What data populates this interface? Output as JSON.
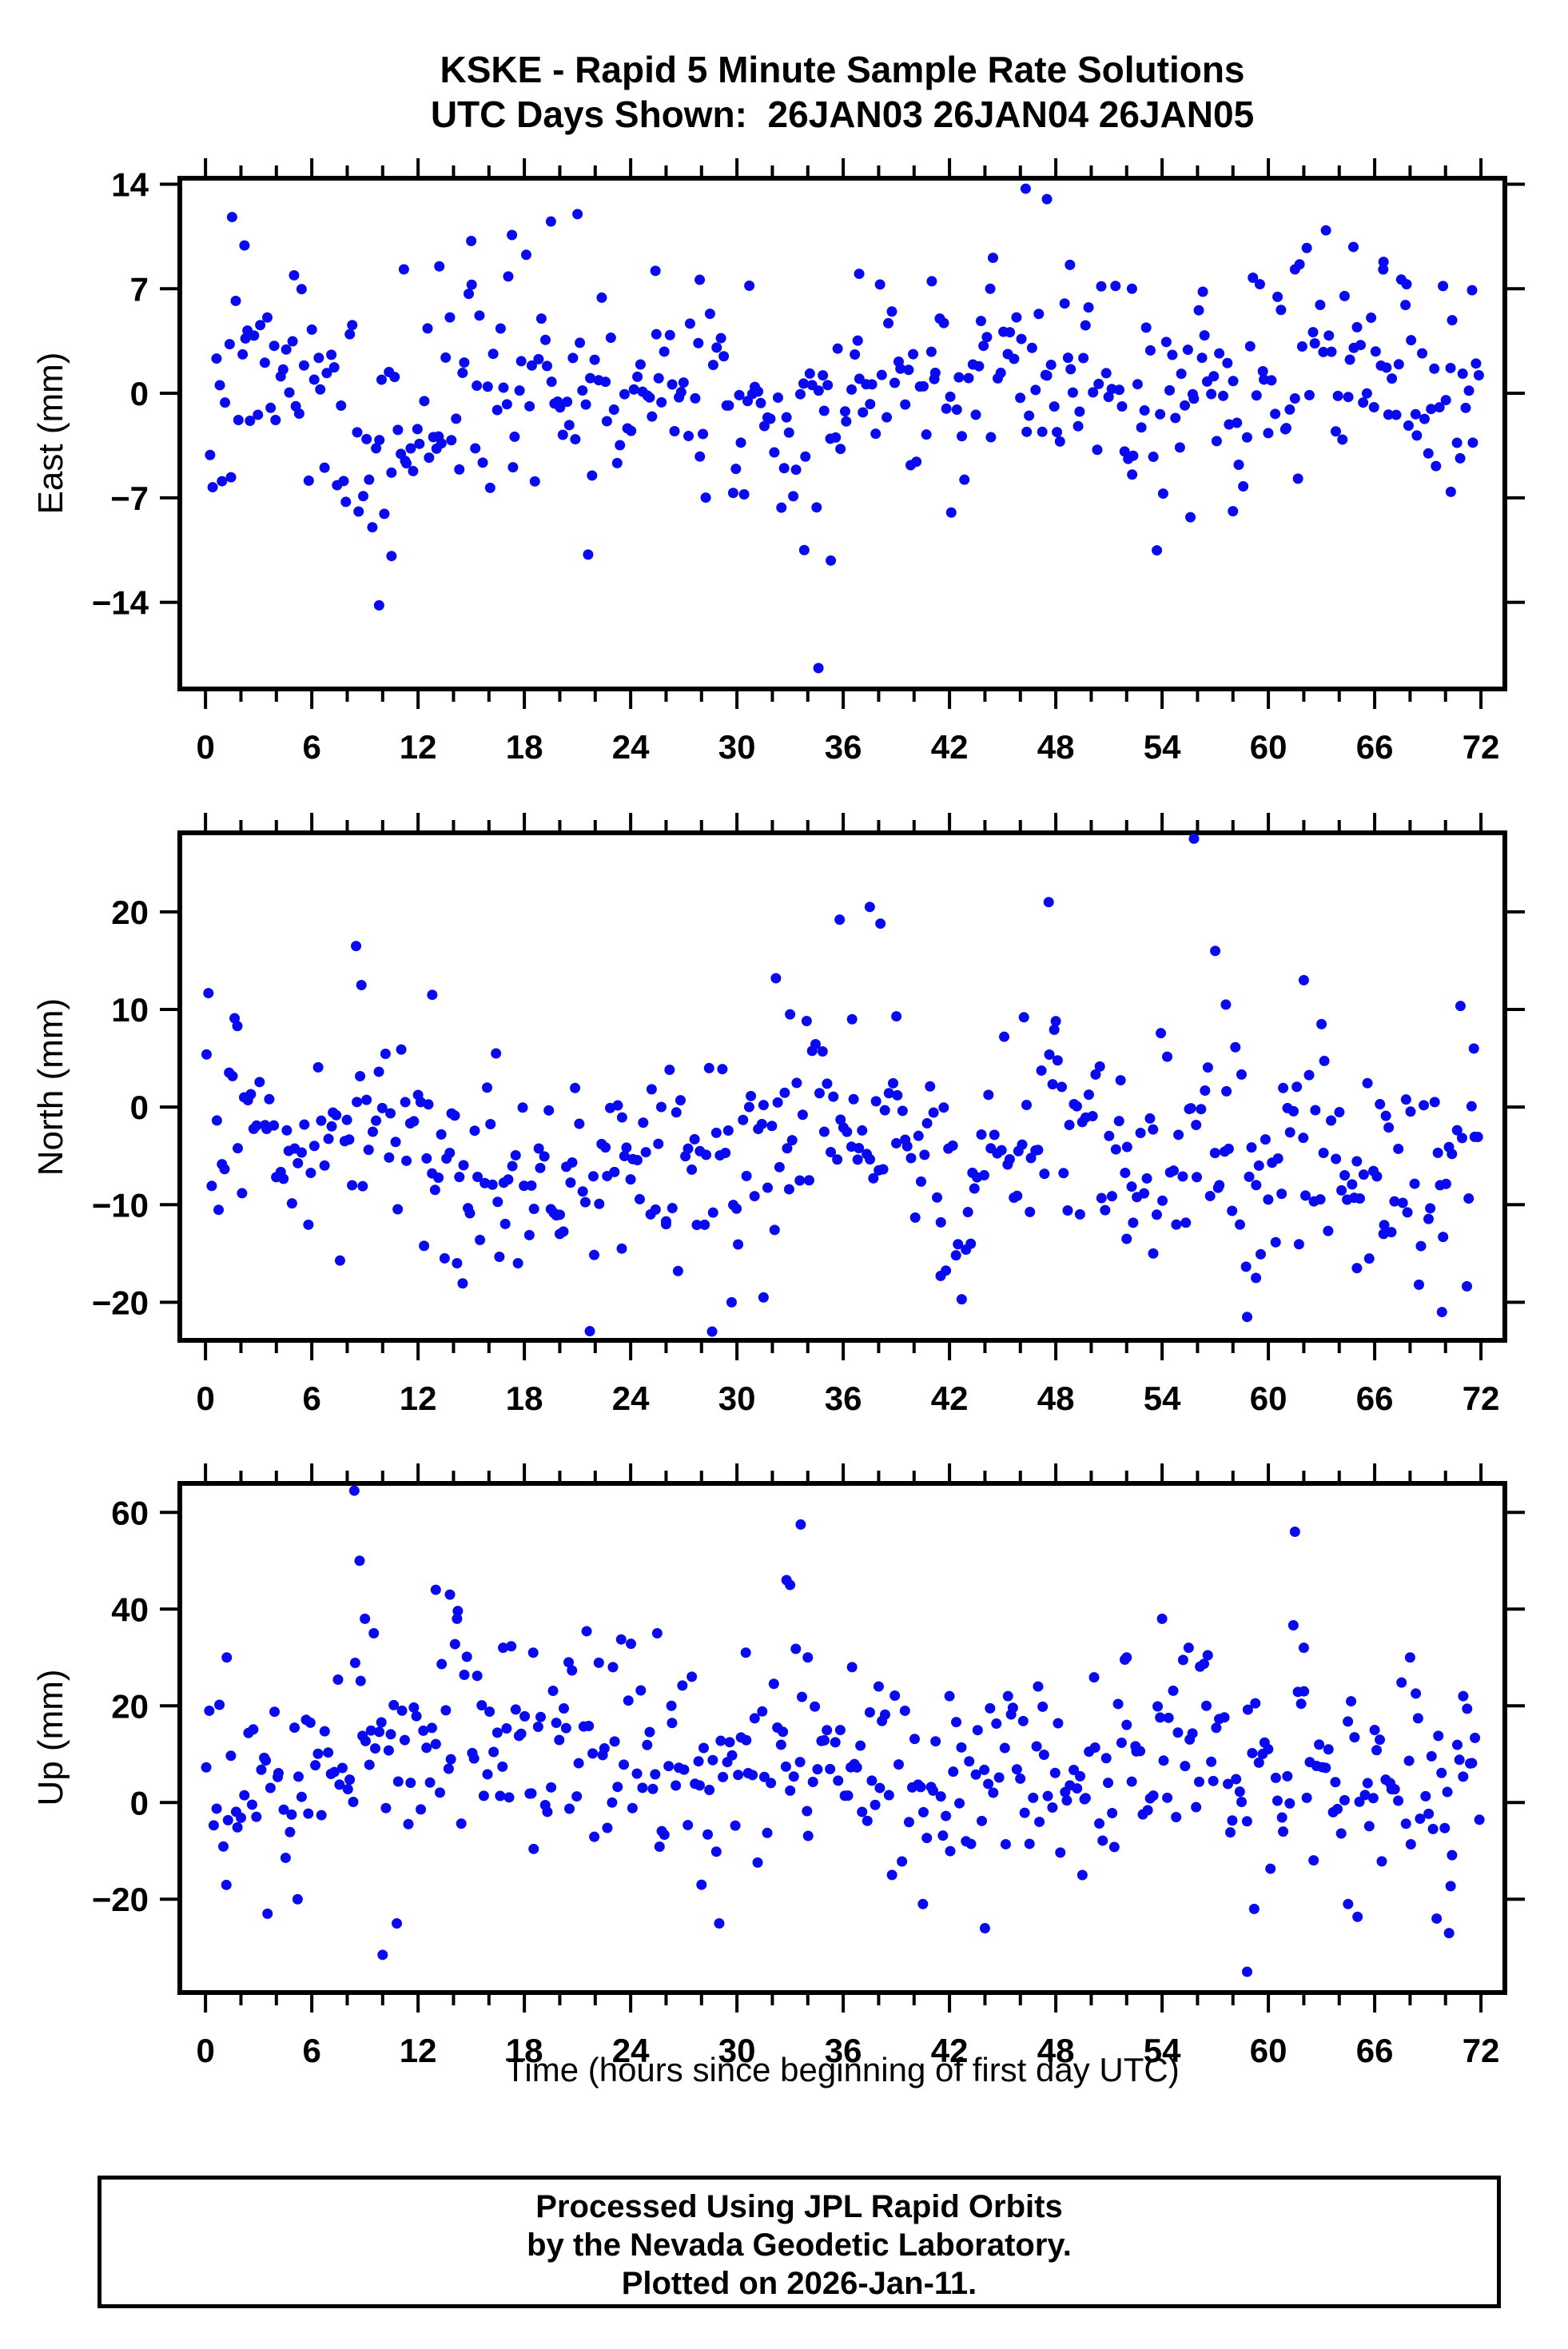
{
  "page": {
    "title_line1": "KSKE - Rapid 5 Minute Sample Rate Solutions",
    "title_line2": "UTC Days Shown:  26JAN03 26JAN04 26JAN05",
    "footer_lines": [
      "Processed Using JPL Rapid Orbits",
      "by the Nevada Geodetic Laboratory.",
      "Plotted on 2026-Jan-11."
    ]
  },
  "chart_data": {
    "type": "scatter",
    "station": "KSKE",
    "marker": {
      "shape": "circle",
      "color": "#0a0af0",
      "radius_px": 6.5
    },
    "x_axis": {
      "label": "Time (hours since beginning of first day UTC)",
      "limits": [
        -1.45,
        73.35
      ],
      "major_ticks": [
        0,
        6,
        12,
        18,
        24,
        30,
        36,
        42,
        48,
        54,
        60,
        66,
        72
      ],
      "minor_tick_interval": 2
    },
    "panels": [
      {
        "id": "east",
        "ylabel": "East (mm)",
        "ylim": [
          -19.8,
          14.4
        ],
        "ytick_values": [
          14,
          7,
          0,
          -7,
          -14
        ],
        "ytick_labels": [
          "14",
          "7",
          "0",
          "−7",
          "−14"
        ],
        "n_background_points": 400,
        "seed": 7,
        "noise_std": 3.4,
        "baseline_knot_interval_hours": 3,
        "baseline_knots": [
          -1,
          0,
          1.5,
          -4,
          -2,
          1,
          0.5,
          0.5,
          0,
          0,
          0.5,
          -3,
          -1,
          1,
          0.5,
          2,
          2,
          0.5,
          0.5,
          -0.5,
          1,
          2.5,
          2,
          1,
          0.5
        ],
        "outlier_points": [
          [
            1.5,
            11.8
          ],
          [
            2.2,
            9.9
          ],
          [
            5.0,
            7.9
          ],
          [
            9.8,
            -14.2
          ],
          [
            10.5,
            -10.9
          ],
          [
            11.2,
            8.3
          ],
          [
            13.2,
            8.5
          ],
          [
            15.0,
            10.2
          ],
          [
            17.3,
            10.6
          ],
          [
            19.5,
            11.5
          ],
          [
            21.0,
            12.0
          ],
          [
            21.6,
            -10.8
          ],
          [
            25.4,
            8.2
          ],
          [
            27.9,
            7.6
          ],
          [
            30.7,
            7.2
          ],
          [
            33.8,
            -10.5
          ],
          [
            34.6,
            -18.4
          ],
          [
            35.3,
            -11.2
          ],
          [
            36.9,
            8.0
          ],
          [
            41.0,
            7.5
          ],
          [
            44.3,
            7.0
          ],
          [
            46.3,
            13.7
          ],
          [
            47.5,
            13.0
          ],
          [
            48.8,
            8.6
          ],
          [
            52.3,
            7.0
          ],
          [
            55.6,
            -8.3
          ],
          [
            56.3,
            6.8
          ],
          [
            58.0,
            -7.9
          ],
          [
            61.5,
            8.3
          ],
          [
            64.8,
            9.8
          ],
          [
            66.5,
            8.8
          ],
          [
            67.8,
            7.3
          ],
          [
            70.3,
            -6.6
          ],
          [
            71.5,
            6.9
          ]
        ]
      },
      {
        "id": "north",
        "ylabel": "North (mm)",
        "ylim": [
          -23.9,
          28.1
        ],
        "ytick_values": [
          20,
          10,
          0,
          -10,
          -20
        ],
        "ytick_labels": [
          "20",
          "10",
          "0",
          "−10",
          "−20"
        ],
        "n_background_points": 400,
        "seed": 13,
        "noise_std": 5.0,
        "baseline_knot_interval_hours": 3,
        "baseline_knots": [
          -1,
          -4,
          -7,
          -3,
          -4,
          -9,
          -6,
          -5,
          -4,
          -5,
          -6,
          -2,
          -1,
          -3,
          -7,
          -4,
          -2,
          -6,
          -4,
          -3,
          -6,
          -4,
          -7,
          -6,
          -2
        ],
        "outlier_points": [
          [
            1.8,
            8.3
          ],
          [
            8.5,
            16.5
          ],
          [
            8.8,
            12.5
          ],
          [
            12.8,
            11.5
          ],
          [
            13.5,
            -15.5
          ],
          [
            14.2,
            -16.0
          ],
          [
            16.4,
            5.5
          ],
          [
            20.0,
            -13.0
          ],
          [
            23.5,
            -14.5
          ],
          [
            26.0,
            -12.0
          ],
          [
            28.6,
            -23.0
          ],
          [
            29.7,
            -20.0
          ],
          [
            31.5,
            -19.5
          ],
          [
            32.2,
            13.2
          ],
          [
            33.0,
            9.5
          ],
          [
            35.8,
            19.2
          ],
          [
            36.5,
            9.0
          ],
          [
            37.5,
            20.5
          ],
          [
            38.1,
            18.8
          ],
          [
            39.0,
            9.3
          ],
          [
            41.5,
            -17.3
          ],
          [
            43.2,
            -14.0
          ],
          [
            46.2,
            9.2
          ],
          [
            47.6,
            21.0
          ],
          [
            48.0,
            8.8
          ],
          [
            52.0,
            -13.5
          ],
          [
            53.5,
            -15.0
          ],
          [
            55.8,
            27.5
          ],
          [
            57.0,
            16.0
          ],
          [
            57.6,
            10.5
          ],
          [
            58.8,
            -21.5
          ],
          [
            59.3,
            -17.5
          ],
          [
            62.0,
            13.0
          ],
          [
            63.0,
            8.5
          ],
          [
            65.0,
            -16.5
          ],
          [
            66.5,
            -13.0
          ],
          [
            69.8,
            -21.0
          ],
          [
            71.6,
            6.0
          ]
        ]
      },
      {
        "id": "up",
        "ylabel": "Up (mm)",
        "ylim": [
          -39.3,
          66.0
        ],
        "ytick_values": [
          60,
          40,
          20,
          0,
          -20
        ],
        "ytick_labels": [
          "60",
          "40",
          "20",
          "0",
          "−20"
        ],
        "n_background_points": 400,
        "seed": 21,
        "noise_std": 10.0,
        "baseline_knot_interval_hours": 3,
        "baseline_knots": [
          10,
          3,
          8,
          18,
          8,
          15,
          12,
          10,
          12,
          8,
          6,
          14,
          8,
          8,
          4,
          6,
          6,
          8,
          12,
          10,
          8,
          6,
          4,
          8,
          4
        ],
        "outlier_points": [
          [
            1.2,
            30.0
          ],
          [
            3.5,
            -23.0
          ],
          [
            5.2,
            -20.0
          ],
          [
            8.4,
            64.5
          ],
          [
            8.7,
            50.0
          ],
          [
            9.0,
            38.0
          ],
          [
            9.5,
            35.0
          ],
          [
            10.0,
            -31.5
          ],
          [
            10.8,
            -25.0
          ],
          [
            13.0,
            44.0
          ],
          [
            13.8,
            43.0
          ],
          [
            14.2,
            38.0
          ],
          [
            16.8,
            32.0
          ],
          [
            18.5,
            31.0
          ],
          [
            20.5,
            29.0
          ],
          [
            23.0,
            28.0
          ],
          [
            25.5,
            35.0
          ],
          [
            26.3,
            20.0
          ],
          [
            28.0,
            -17.0
          ],
          [
            29.0,
            -25.0
          ],
          [
            30.5,
            31.0
          ],
          [
            32.8,
            46.0
          ],
          [
            33.0,
            45.0
          ],
          [
            33.6,
            57.5
          ],
          [
            34.0,
            30.0
          ],
          [
            36.5,
            28.0
          ],
          [
            38.0,
            24.0
          ],
          [
            40.5,
            -21.0
          ],
          [
            42.0,
            22.0
          ],
          [
            44.0,
            -26.0
          ],
          [
            45.3,
            22.0
          ],
          [
            47.0,
            24.0
          ],
          [
            49.5,
            -15.0
          ],
          [
            52.0,
            30.0
          ],
          [
            54.0,
            38.0
          ],
          [
            55.5,
            32.0
          ],
          [
            56.5,
            20.0
          ],
          [
            58.8,
            -35.0
          ],
          [
            59.2,
            -22.0
          ],
          [
            61.5,
            56.0
          ],
          [
            62.0,
            32.0
          ],
          [
            64.5,
            -21.0
          ],
          [
            66.0,
            15.0
          ],
          [
            68.0,
            30.0
          ],
          [
            69.5,
            -24.0
          ],
          [
            70.2,
            -27.0
          ],
          [
            71.0,
            22.0
          ]
        ]
      }
    ]
  }
}
